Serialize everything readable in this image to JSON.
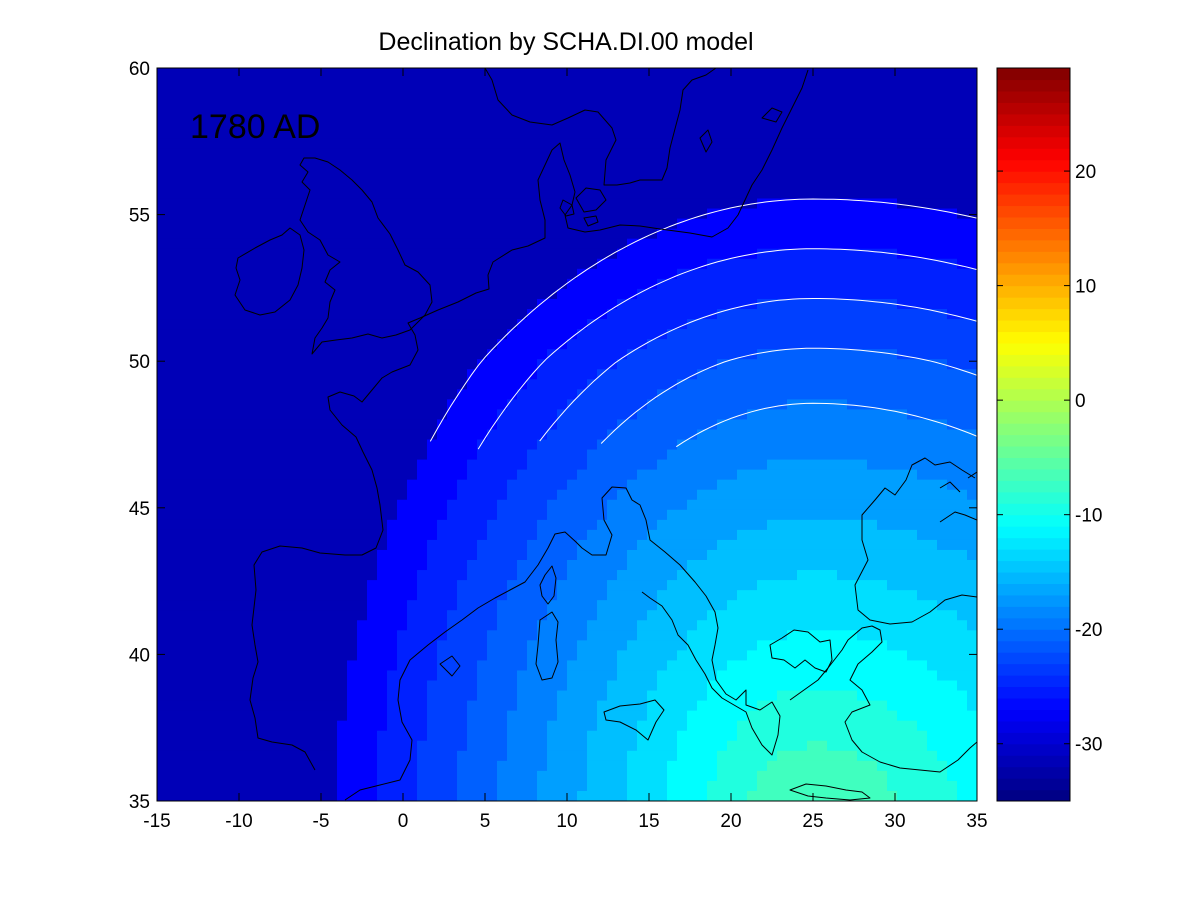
{
  "chart_data": {
    "type": "heatmap",
    "subtype": "filled-contour map",
    "title": "Declination by SCHA.DI.00 model",
    "annotation": "1780 AD",
    "xlabel": "",
    "ylabel": "",
    "x_ticks": [
      "-15",
      "-10",
      "-5",
      "0",
      "5",
      "10",
      "15",
      "20",
      "25",
      "30",
      "35"
    ],
    "y_ticks": [
      "35",
      "40",
      "45",
      "50",
      "55",
      "60"
    ],
    "xlim": [
      -15,
      35
    ],
    "ylim": [
      35,
      60
    ],
    "colorbar": {
      "colormap": "jet",
      "range": [
        -35,
        29
      ],
      "ticks": [
        "20",
        "10",
        "0",
        "-10",
        "-20",
        "-30"
      ]
    },
    "contour_levels": [
      -28,
      -26,
      -24,
      -22,
      -20,
      -18,
      -16,
      -14,
      -12,
      -10,
      -8,
      -6
    ],
    "grid": false,
    "colors": {
      "contour_line": "#ffffff",
      "coastline": "#000000",
      "background": "#ffffff"
    }
  }
}
